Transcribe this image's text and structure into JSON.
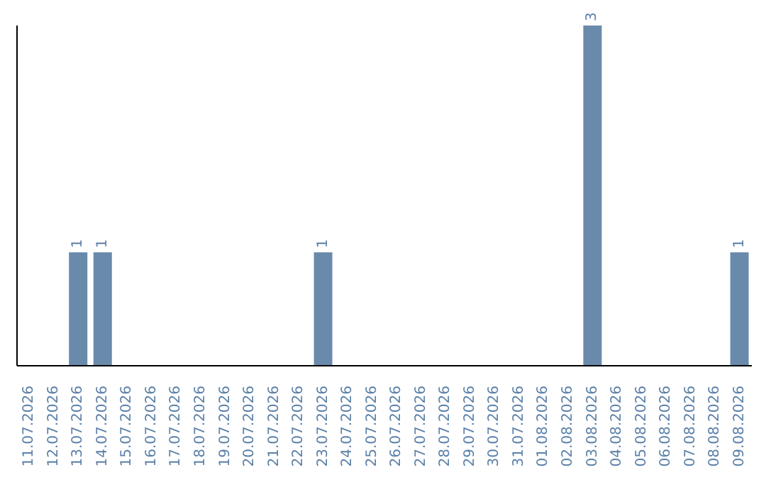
{
  "chart_data": {
    "type": "bar",
    "categories": [
      "11.07.2026",
      "12.07.2026",
      "13.07.2026",
      "14.07.2026",
      "15.07.2026",
      "16.07.2026",
      "17.07.2026",
      "18.07.2026",
      "19.07.2026",
      "20.07.2026",
      "21.07.2026",
      "22.07.2026",
      "23.07.2026",
      "24.07.2026",
      "25.07.2026",
      "26.07.2026",
      "27.07.2026",
      "28.07.2026",
      "29.07.2026",
      "30.07.2026",
      "31.07.2026",
      "01.08.2026",
      "02.08.2026",
      "03.08.2026",
      "04.08.2026",
      "05.08.2026",
      "06.08.2026",
      "07.08.2026",
      "08.08.2026",
      "09.08.2026"
    ],
    "values": [
      0,
      0,
      1,
      1,
      0,
      0,
      0,
      0,
      0,
      0,
      0,
      0,
      1,
      0,
      0,
      0,
      0,
      0,
      0,
      0,
      0,
      0,
      0,
      3,
      0,
      0,
      0,
      0,
      0,
      1
    ],
    "value_labels": [
      null,
      null,
      "1",
      "1",
      null,
      null,
      null,
      null,
      null,
      null,
      null,
      null,
      "1",
      null,
      null,
      null,
      null,
      null,
      null,
      null,
      null,
      null,
      null,
      "3",
      null,
      null,
      null,
      null,
      null,
      "1"
    ],
    "color": "#6a8aab",
    "grid": false
  }
}
